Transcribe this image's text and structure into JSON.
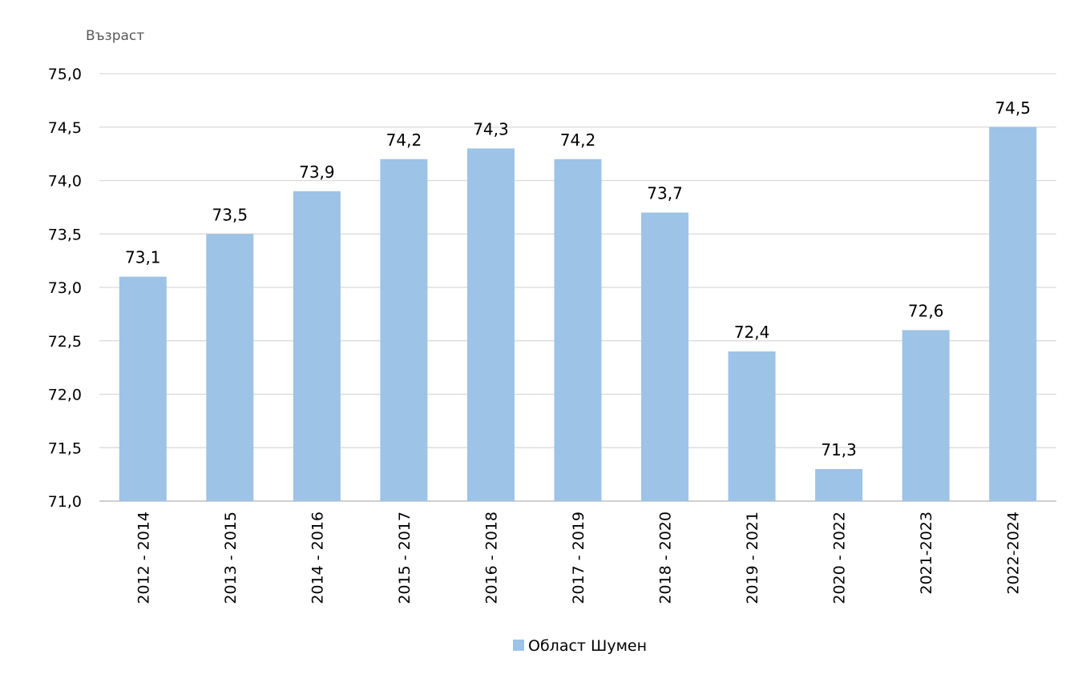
{
  "chart_data": {
    "type": "bar",
    "y_unit_label": "Възраст",
    "categories": [
      "2012 - 2014",
      "2013 - 2015",
      "2014 - 2016",
      "2015 - 2017",
      "2016 - 2018",
      "2017 - 2019",
      "2018 - 2020",
      "2019 - 2021",
      "2020 - 2022",
      "2021-2023",
      "2022-2024"
    ],
    "series": [
      {
        "name": "Област Шумен",
        "color": "#9dc3e6",
        "values": [
          73.1,
          73.5,
          73.9,
          74.2,
          74.3,
          74.2,
          73.7,
          72.4,
          71.3,
          72.6,
          74.5
        ],
        "data_labels": [
          "73,1",
          "73,5",
          "73,9",
          "74,2",
          "74,3",
          "74,2",
          "73,7",
          "72,4",
          "71,3",
          "72,6",
          "74,5"
        ]
      }
    ],
    "ylim": [
      71.0,
      75.0
    ],
    "y_ticks": [
      {
        "value": 71.0,
        "label": "71,0"
      },
      {
        "value": 71.5,
        "label": "71,5"
      },
      {
        "value": 72.0,
        "label": "72,0"
      },
      {
        "value": 72.5,
        "label": "72,5"
      },
      {
        "value": 73.0,
        "label": "73,0"
      },
      {
        "value": 73.5,
        "label": "73,5"
      },
      {
        "value": 74.0,
        "label": "74,0"
      },
      {
        "value": 74.5,
        "label": "74,5"
      },
      {
        "value": 75.0,
        "label": "75,0"
      }
    ],
    "grid": true,
    "legend_position": "bottom",
    "gridline_color": "#d9d9d9",
    "axis_color": "#bfbfbf"
  }
}
